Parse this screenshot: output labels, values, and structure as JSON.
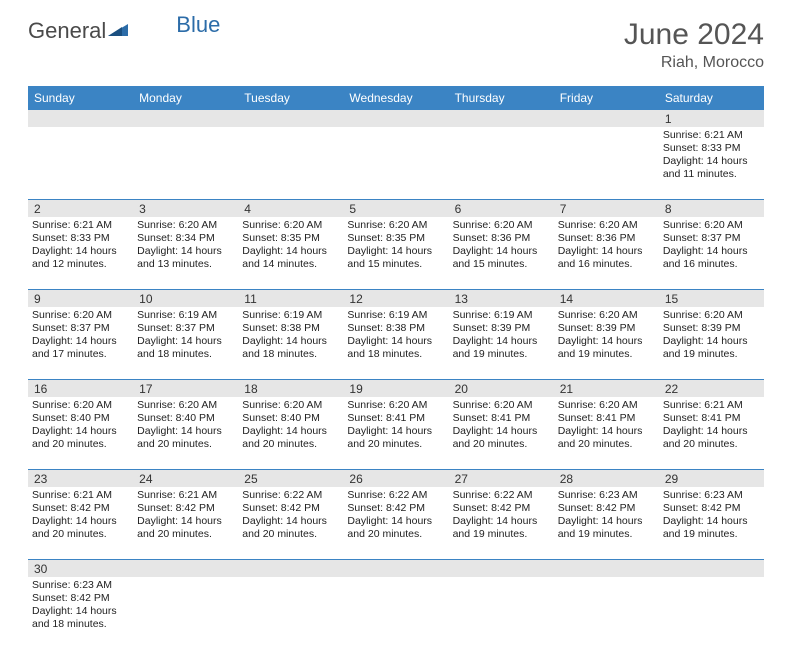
{
  "logo": {
    "text1": "General",
    "text2": "Blue"
  },
  "title": "June 2024",
  "location": "Riah, Morocco",
  "colors": {
    "header_bg": "#3b84c4",
    "header_text": "#ffffff",
    "daynum_bg": "#e6e6e6",
    "row_border": "#3b84c4",
    "title_color": "#555555",
    "body_text": "#222222"
  },
  "fonts": {
    "title_size": 30,
    "location_size": 16,
    "dow_size": 12,
    "cell_size": 10.5,
    "daynum_size": 12
  },
  "days_of_week": [
    "Sunday",
    "Monday",
    "Tuesday",
    "Wednesday",
    "Thursday",
    "Friday",
    "Saturday"
  ],
  "weeks": [
    [
      null,
      null,
      null,
      null,
      null,
      null,
      {
        "n": "1",
        "sunrise": "Sunrise: 6:21 AM",
        "sunset": "Sunset: 8:33 PM",
        "day1": "Daylight: 14 hours",
        "day2": "and 11 minutes."
      }
    ],
    [
      {
        "n": "2",
        "sunrise": "Sunrise: 6:21 AM",
        "sunset": "Sunset: 8:33 PM",
        "day1": "Daylight: 14 hours",
        "day2": "and 12 minutes."
      },
      {
        "n": "3",
        "sunrise": "Sunrise: 6:20 AM",
        "sunset": "Sunset: 8:34 PM",
        "day1": "Daylight: 14 hours",
        "day2": "and 13 minutes."
      },
      {
        "n": "4",
        "sunrise": "Sunrise: 6:20 AM",
        "sunset": "Sunset: 8:35 PM",
        "day1": "Daylight: 14 hours",
        "day2": "and 14 minutes."
      },
      {
        "n": "5",
        "sunrise": "Sunrise: 6:20 AM",
        "sunset": "Sunset: 8:35 PM",
        "day1": "Daylight: 14 hours",
        "day2": "and 15 minutes."
      },
      {
        "n": "6",
        "sunrise": "Sunrise: 6:20 AM",
        "sunset": "Sunset: 8:36 PM",
        "day1": "Daylight: 14 hours",
        "day2": "and 15 minutes."
      },
      {
        "n": "7",
        "sunrise": "Sunrise: 6:20 AM",
        "sunset": "Sunset: 8:36 PM",
        "day1": "Daylight: 14 hours",
        "day2": "and 16 minutes."
      },
      {
        "n": "8",
        "sunrise": "Sunrise: 6:20 AM",
        "sunset": "Sunset: 8:37 PM",
        "day1": "Daylight: 14 hours",
        "day2": "and 16 minutes."
      }
    ],
    [
      {
        "n": "9",
        "sunrise": "Sunrise: 6:20 AM",
        "sunset": "Sunset: 8:37 PM",
        "day1": "Daylight: 14 hours",
        "day2": "and 17 minutes."
      },
      {
        "n": "10",
        "sunrise": "Sunrise: 6:19 AM",
        "sunset": "Sunset: 8:37 PM",
        "day1": "Daylight: 14 hours",
        "day2": "and 18 minutes."
      },
      {
        "n": "11",
        "sunrise": "Sunrise: 6:19 AM",
        "sunset": "Sunset: 8:38 PM",
        "day1": "Daylight: 14 hours",
        "day2": "and 18 minutes."
      },
      {
        "n": "12",
        "sunrise": "Sunrise: 6:19 AM",
        "sunset": "Sunset: 8:38 PM",
        "day1": "Daylight: 14 hours",
        "day2": "and 18 minutes."
      },
      {
        "n": "13",
        "sunrise": "Sunrise: 6:19 AM",
        "sunset": "Sunset: 8:39 PM",
        "day1": "Daylight: 14 hours",
        "day2": "and 19 minutes."
      },
      {
        "n": "14",
        "sunrise": "Sunrise: 6:20 AM",
        "sunset": "Sunset: 8:39 PM",
        "day1": "Daylight: 14 hours",
        "day2": "and 19 minutes."
      },
      {
        "n": "15",
        "sunrise": "Sunrise: 6:20 AM",
        "sunset": "Sunset: 8:39 PM",
        "day1": "Daylight: 14 hours",
        "day2": "and 19 minutes."
      }
    ],
    [
      {
        "n": "16",
        "sunrise": "Sunrise: 6:20 AM",
        "sunset": "Sunset: 8:40 PM",
        "day1": "Daylight: 14 hours",
        "day2": "and 20 minutes."
      },
      {
        "n": "17",
        "sunrise": "Sunrise: 6:20 AM",
        "sunset": "Sunset: 8:40 PM",
        "day1": "Daylight: 14 hours",
        "day2": "and 20 minutes."
      },
      {
        "n": "18",
        "sunrise": "Sunrise: 6:20 AM",
        "sunset": "Sunset: 8:40 PM",
        "day1": "Daylight: 14 hours",
        "day2": "and 20 minutes."
      },
      {
        "n": "19",
        "sunrise": "Sunrise: 6:20 AM",
        "sunset": "Sunset: 8:41 PM",
        "day1": "Daylight: 14 hours",
        "day2": "and 20 minutes."
      },
      {
        "n": "20",
        "sunrise": "Sunrise: 6:20 AM",
        "sunset": "Sunset: 8:41 PM",
        "day1": "Daylight: 14 hours",
        "day2": "and 20 minutes."
      },
      {
        "n": "21",
        "sunrise": "Sunrise: 6:20 AM",
        "sunset": "Sunset: 8:41 PM",
        "day1": "Daylight: 14 hours",
        "day2": "and 20 minutes."
      },
      {
        "n": "22",
        "sunrise": "Sunrise: 6:21 AM",
        "sunset": "Sunset: 8:41 PM",
        "day1": "Daylight: 14 hours",
        "day2": "and 20 minutes."
      }
    ],
    [
      {
        "n": "23",
        "sunrise": "Sunrise: 6:21 AM",
        "sunset": "Sunset: 8:42 PM",
        "day1": "Daylight: 14 hours",
        "day2": "and 20 minutes."
      },
      {
        "n": "24",
        "sunrise": "Sunrise: 6:21 AM",
        "sunset": "Sunset: 8:42 PM",
        "day1": "Daylight: 14 hours",
        "day2": "and 20 minutes."
      },
      {
        "n": "25",
        "sunrise": "Sunrise: 6:22 AM",
        "sunset": "Sunset: 8:42 PM",
        "day1": "Daylight: 14 hours",
        "day2": "and 20 minutes."
      },
      {
        "n": "26",
        "sunrise": "Sunrise: 6:22 AM",
        "sunset": "Sunset: 8:42 PM",
        "day1": "Daylight: 14 hours",
        "day2": "and 20 minutes."
      },
      {
        "n": "27",
        "sunrise": "Sunrise: 6:22 AM",
        "sunset": "Sunset: 8:42 PM",
        "day1": "Daylight: 14 hours",
        "day2": "and 19 minutes."
      },
      {
        "n": "28",
        "sunrise": "Sunrise: 6:23 AM",
        "sunset": "Sunset: 8:42 PM",
        "day1": "Daylight: 14 hours",
        "day2": "and 19 minutes."
      },
      {
        "n": "29",
        "sunrise": "Sunrise: 6:23 AM",
        "sunset": "Sunset: 8:42 PM",
        "day1": "Daylight: 14 hours",
        "day2": "and 19 minutes."
      }
    ],
    [
      {
        "n": "30",
        "sunrise": "Sunrise: 6:23 AM",
        "sunset": "Sunset: 8:42 PM",
        "day1": "Daylight: 14 hours",
        "day2": "and 18 minutes."
      },
      null,
      null,
      null,
      null,
      null,
      null
    ]
  ]
}
